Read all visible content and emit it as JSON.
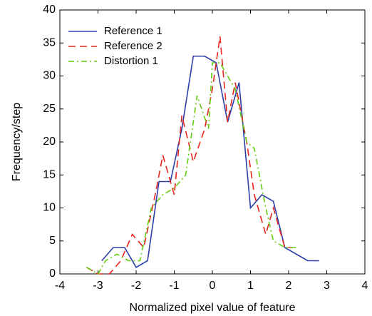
{
  "chart_data": {
    "type": "line",
    "x_label": "Normalized pixel value of feature",
    "y_label": "Frequency/step",
    "xlim": [
      -4,
      4
    ],
    "xticks": [
      -4,
      -3,
      -2,
      -1,
      0,
      1,
      2,
      3,
      4
    ],
    "ylim": [
      0,
      40
    ],
    "yticks": [
      0,
      5,
      10,
      15,
      20,
      25,
      30,
      35,
      40
    ],
    "legend": "upper left",
    "series": [
      {
        "name": "Reference 1",
        "color": "#2b3fa6",
        "dash": "solid",
        "x": [
          -2.9,
          -2.6,
          -2.3,
          -2.0,
          -1.7,
          -1.4,
          -1.1,
          -0.8,
          -0.5,
          -0.2,
          0.1,
          0.4,
          0.7,
          1.0,
          1.3,
          1.6,
          1.9,
          2.2,
          2.5,
          2.8
        ],
        "values": [
          2,
          4,
          4,
          1,
          2,
          14,
          14,
          22,
          33,
          33,
          32,
          23,
          29,
          10,
          12,
          11,
          4,
          3,
          2,
          2
        ]
      },
      {
        "name": "Reference 2",
        "color": "#e8251f",
        "dash": "dashed",
        "x": [
          -3.3,
          -3.0,
          -2.7,
          -2.4,
          -2.1,
          -1.8,
          -1.5,
          -1.3,
          -1.0,
          -0.8,
          -0.5,
          -0.2,
          0.0,
          0.2,
          0.4,
          0.6,
          0.9,
          1.1,
          1.4,
          1.6,
          1.9,
          2.1
        ],
        "values": [
          1,
          0,
          0,
          2,
          6,
          4,
          12,
          18,
          12,
          24,
          17,
          22,
          28,
          36,
          23,
          29,
          20,
          12,
          6,
          10,
          4,
          4
        ]
      },
      {
        "name": "Distortion 1",
        "color": "#66cc11",
        "dash": "dashdot",
        "x": [
          -3.3,
          -3.0,
          -2.8,
          -2.5,
          -2.2,
          -1.9,
          -1.6,
          -1.3,
          -1.0,
          -0.7,
          -0.4,
          -0.1,
          0.0,
          0.2,
          0.4,
          0.6,
          0.9,
          1.1,
          1.4,
          1.6,
          1.9,
          2.2
        ],
        "values": [
          1,
          0,
          2,
          3,
          2,
          2,
          10,
          12,
          13,
          15,
          27,
          22,
          32,
          32,
          30,
          28,
          20,
          19,
          10,
          5,
          4,
          4
        ]
      }
    ]
  }
}
